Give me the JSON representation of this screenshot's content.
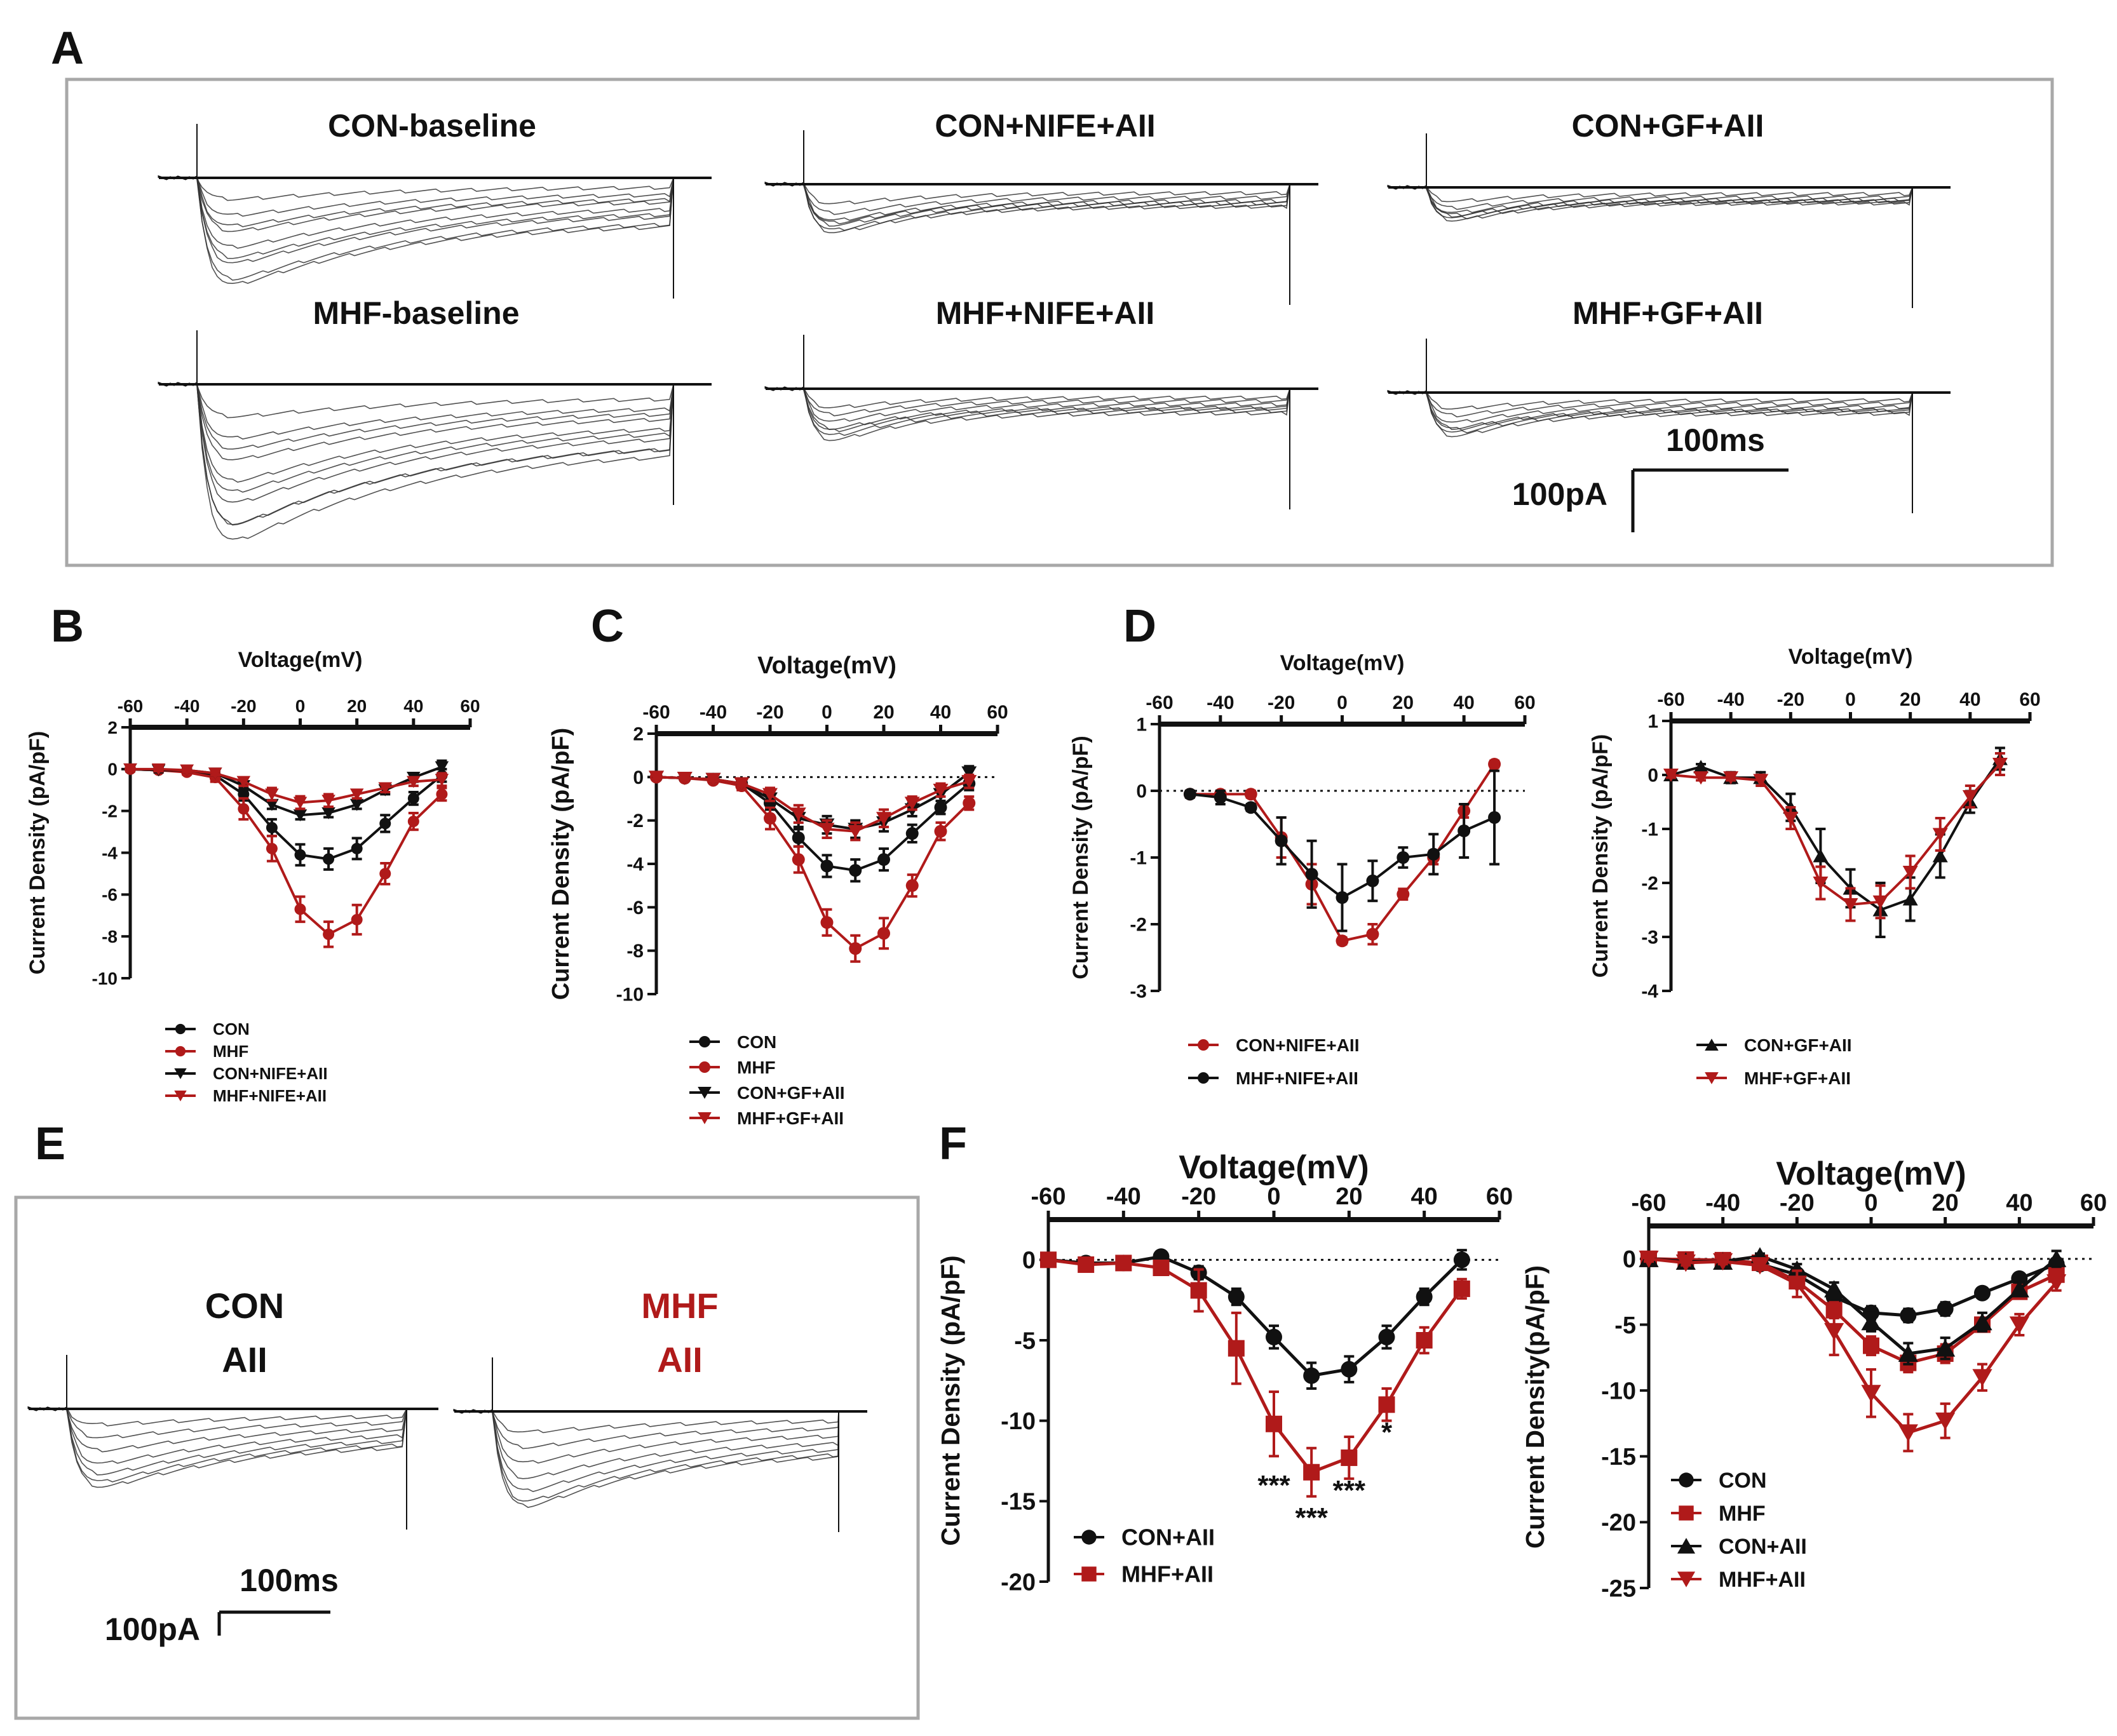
{
  "panel_letters": {
    "a": "A",
    "b": "B",
    "c": "C",
    "d": "D",
    "e": "E",
    "f": "F"
  },
  "colors": {
    "black": "#111111",
    "red": "#b01a1a",
    "frame": "#a8a8a8"
  },
  "traces": {
    "titles": {
      "con_baseline": "CON-baseline",
      "con_nife": "CON+NIFE+AII",
      "con_gf": "CON+GF+AII",
      "mhf_baseline": "MHF-baseline",
      "mhf_nife": "MHF+NIFE+AII",
      "mhf_gf": "MHF+GF+AII"
    },
    "scale_time": "100ms",
    "scale_current": "100pA"
  },
  "traces_e": {
    "con_line1": "CON",
    "con_line2": "AII",
    "mhf_line1": "MHF",
    "mhf_line2": "AII",
    "scale_time": "100ms",
    "scale_current": "100pA"
  },
  "chart_data": [
    {
      "id": "B",
      "type": "line",
      "title": "",
      "xlabel": "Voltage(mV)",
      "ylabel": "Current Density (pA/pF)",
      "xlim": [
        -60,
        60
      ],
      "ylim": [
        -10,
        2
      ],
      "xticks": [
        -60,
        -40,
        -20,
        0,
        20,
        40,
        60
      ],
      "yticks": [
        2,
        0,
        -2,
        -4,
        -6,
        -8,
        -10
      ],
      "zero_line": false,
      "legend": "bottom-left",
      "x": [
        -60,
        -50,
        -40,
        -30,
        -20,
        -10,
        0,
        10,
        20,
        30,
        40,
        50
      ],
      "series": [
        {
          "name": "CON",
          "color": "black",
          "marker": "circle",
          "values": [
            0,
            -0.05,
            -0.1,
            -0.3,
            -1.2,
            -2.8,
            -4.1,
            -4.3,
            -3.8,
            -2.6,
            -1.4,
            -0.3
          ],
          "errors": [
            0.1,
            0.1,
            0.1,
            0.15,
            0.3,
            0.4,
            0.5,
            0.5,
            0.5,
            0.4,
            0.3,
            0.3
          ]
        },
        {
          "name": "MHF",
          "color": "red",
          "marker": "circle",
          "values": [
            0,
            -0.05,
            -0.15,
            -0.4,
            -1.9,
            -3.8,
            -6.7,
            -7.9,
            -7.2,
            -5.0,
            -2.5,
            -1.2
          ],
          "errors": [
            0.1,
            0.1,
            0.1,
            0.2,
            0.5,
            0.6,
            0.6,
            0.6,
            0.7,
            0.5,
            0.4,
            0.3
          ]
        },
        {
          "name": "CON+NIFE+AII",
          "color": "black",
          "marker": "triangle-down",
          "values": [
            0,
            -0.05,
            -0.05,
            -0.2,
            -0.8,
            -1.7,
            -2.2,
            -2.1,
            -1.7,
            -1.0,
            -0.4,
            0.1
          ],
          "errors": [
            0.1,
            0.1,
            0.1,
            0.1,
            0.2,
            0.2,
            0.2,
            0.2,
            0.2,
            0.2,
            0.2,
            0.3
          ]
        },
        {
          "name": "MHF+NIFE+AII",
          "color": "red",
          "marker": "triangle-down",
          "values": [
            0,
            0,
            -0.05,
            -0.2,
            -0.6,
            -1.2,
            -1.6,
            -1.5,
            -1.2,
            -0.9,
            -0.6,
            -0.5
          ],
          "errors": [
            0.1,
            0.1,
            0.1,
            0.1,
            0.2,
            0.3,
            0.3,
            0.3,
            0.2,
            0.2,
            0.2,
            0.3
          ]
        }
      ]
    },
    {
      "id": "C",
      "type": "line",
      "title": "",
      "xlabel": "Voltage(mV)",
      "ylabel": "Current Density (pA/pF)",
      "xlim": [
        -60,
        60
      ],
      "ylim": [
        -10,
        2
      ],
      "xticks": [
        -60,
        -40,
        -20,
        0,
        20,
        40,
        60
      ],
      "yticks": [
        2,
        0,
        -2,
        -4,
        -6,
        -8,
        -10
      ],
      "zero_line": true,
      "legend": "bottom-left",
      "x": [
        -60,
        -50,
        -40,
        -30,
        -20,
        -10,
        0,
        10,
        20,
        30,
        40,
        50
      ],
      "series": [
        {
          "name": "CON",
          "color": "black",
          "marker": "circle",
          "values": [
            0,
            -0.05,
            -0.1,
            -0.3,
            -1.2,
            -2.8,
            -4.1,
            -4.3,
            -3.8,
            -2.6,
            -1.4,
            -0.3
          ],
          "errors": [
            0.1,
            0.1,
            0.1,
            0.15,
            0.3,
            0.4,
            0.5,
            0.5,
            0.5,
            0.4,
            0.3,
            0.3
          ]
        },
        {
          "name": "MHF",
          "color": "red",
          "marker": "circle",
          "values": [
            0,
            -0.05,
            -0.15,
            -0.4,
            -1.9,
            -3.8,
            -6.7,
            -7.9,
            -7.2,
            -5.0,
            -2.5,
            -1.2
          ],
          "errors": [
            0.1,
            0.1,
            0.1,
            0.2,
            0.5,
            0.6,
            0.6,
            0.6,
            0.7,
            0.5,
            0.4,
            0.3
          ]
        },
        {
          "name": "CON+GF+AII",
          "color": "black",
          "marker": "triangle-down",
          "values": [
            0,
            -0.05,
            -0.1,
            -0.3,
            -1.0,
            -1.9,
            -2.2,
            -2.4,
            -2.1,
            -1.5,
            -0.8,
            0.2
          ],
          "errors": [
            0.1,
            0.1,
            0.1,
            0.1,
            0.3,
            0.4,
            0.4,
            0.4,
            0.4,
            0.3,
            0.3,
            0.3
          ]
        },
        {
          "name": "MHF+GF+AII",
          "color": "red",
          "marker": "triangle-down",
          "values": [
            0,
            -0.05,
            -0.1,
            -0.3,
            -0.8,
            -1.7,
            -2.4,
            -2.5,
            -1.9,
            -1.2,
            -0.6,
            -0.2
          ],
          "errors": [
            0.1,
            0.1,
            0.1,
            0.1,
            0.3,
            0.4,
            0.4,
            0.4,
            0.4,
            0.3,
            0.3,
            0.3
          ]
        }
      ]
    },
    {
      "id": "D-left",
      "type": "line",
      "title": "",
      "xlabel": "Voltage(mV)",
      "ylabel": "Current Density (pA/pF)",
      "xlim": [
        -60,
        60
      ],
      "ylim": [
        -3,
        1
      ],
      "xticks": [
        -60,
        -40,
        -20,
        0,
        20,
        40,
        60
      ],
      "yticks": [
        1,
        0,
        -1,
        -2,
        -3
      ],
      "zero_line": true,
      "legend": "bottom-left",
      "x": [
        -50,
        -40,
        -30,
        -20,
        -10,
        0,
        10,
        20,
        30,
        40,
        50
      ],
      "series": [
        {
          "name": "CON+NIFE+AII",
          "color": "red",
          "marker": "circle",
          "values": [
            -0.05,
            -0.05,
            -0.05,
            -0.7,
            -1.4,
            -2.25,
            -2.15,
            -1.55,
            -1.0,
            -0.3,
            0.4
          ],
          "errors": [
            0.05,
            0.05,
            0.05,
            0.3,
            0.3,
            0.05,
            0.15,
            0.08,
            0.1,
            0.1,
            0.05
          ]
        },
        {
          "name": "MHF+NIFE+AII",
          "color": "black",
          "marker": "circle",
          "values": [
            -0.05,
            -0.1,
            -0.25,
            -0.75,
            -1.25,
            -1.6,
            -1.35,
            -1.0,
            -0.95,
            -0.6,
            -0.4
          ],
          "errors": [
            0.05,
            0.1,
            0.05,
            0.35,
            0.5,
            0.5,
            0.3,
            0.15,
            0.3,
            0.4,
            0.7
          ]
        }
      ]
    },
    {
      "id": "D-right",
      "type": "line",
      "title": "",
      "xlabel": "Voltage(mV)",
      "ylabel": "Current Density (pA/pF)",
      "xlim": [
        -60,
        60
      ],
      "ylim": [
        -4,
        1
      ],
      "xticks": [
        -60,
        -40,
        -20,
        0,
        20,
        40,
        60
      ],
      "yticks": [
        1,
        0,
        -1,
        -2,
        -3,
        -4
      ],
      "zero_line": false,
      "legend": "bottom-left",
      "x": [
        -60,
        -50,
        -40,
        -30,
        -20,
        -10,
        0,
        10,
        20,
        30,
        40,
        50
      ],
      "series": [
        {
          "name": "CON+GF+AII",
          "color": "black",
          "marker": "triangle-up",
          "values": [
            0,
            0.15,
            -0.05,
            -0.05,
            -0.6,
            -1.5,
            -2.1,
            -2.5,
            -2.3,
            -1.5,
            -0.5,
            0.3
          ],
          "errors": [
            0.05,
            0.05,
            0.1,
            0.1,
            0.25,
            0.5,
            0.35,
            0.5,
            0.4,
            0.4,
            0.2,
            0.2
          ]
        },
        {
          "name": "MHF+GF+AII",
          "color": "red",
          "marker": "triangle-down",
          "values": [
            0,
            -0.05,
            -0.05,
            -0.1,
            -0.8,
            -2.0,
            -2.4,
            -2.35,
            -1.8,
            -1.1,
            -0.4,
            0.2
          ],
          "errors": [
            0.05,
            0.05,
            0.05,
            0.1,
            0.2,
            0.3,
            0.3,
            0.3,
            0.3,
            0.3,
            0.2,
            0.2
          ]
        }
      ]
    },
    {
      "id": "F-left",
      "type": "line",
      "title": "",
      "xlabel": "Voltage(mV)",
      "ylabel": "Current Density (pA/pF)",
      "xlim": [
        -60,
        60
      ],
      "ylim": [
        -20,
        2.5
      ],
      "xticks": [
        -60,
        -40,
        -20,
        0,
        20,
        40,
        60
      ],
      "yticks": [
        0,
        -5,
        -10,
        -15,
        -20
      ],
      "zero_line": true,
      "legend": "bottom-left",
      "x": [
        -60,
        -50,
        -40,
        -30,
        -20,
        -10,
        0,
        10,
        20,
        30,
        40,
        50
      ],
      "series": [
        {
          "name": "CON+AII",
          "color": "black",
          "marker": "circle",
          "values": [
            0,
            -0.2,
            -0.2,
            0.2,
            -0.8,
            -2.3,
            -4.8,
            -7.2,
            -6.8,
            -4.8,
            -2.3,
            0
          ],
          "errors": [
            0.2,
            0.2,
            0.2,
            0.2,
            0.4,
            0.5,
            0.7,
            0.8,
            0.8,
            0.7,
            0.5,
            0.6
          ]
        },
        {
          "name": "MHF+AII",
          "color": "red",
          "marker": "square",
          "values": [
            0,
            -0.3,
            -0.2,
            -0.5,
            -1.9,
            -5.5,
            -10.2,
            -13.2,
            -12.3,
            -9.0,
            -5.0,
            -1.8
          ],
          "errors": [
            0.2,
            0.2,
            0.2,
            0.2,
            1.3,
            2.2,
            2.0,
            1.5,
            1.3,
            1.0,
            0.8,
            0.6
          ]
        }
      ],
      "annotations": [
        {
          "text": "***",
          "x": 0,
          "y": -14.6
        },
        {
          "text": "***",
          "x": 10,
          "y": -16.6
        },
        {
          "text": "***",
          "x": 20,
          "y": -14.9
        },
        {
          "text": "*",
          "x": 30,
          "y": -11.3
        }
      ]
    },
    {
      "id": "F-right",
      "type": "line",
      "title": "",
      "xlabel": "Voltage(mV)",
      "ylabel": "Current Density(pA/pF)",
      "xlim": [
        -60,
        60
      ],
      "ylim": [
        -25,
        2.5
      ],
      "xticks": [
        -60,
        -40,
        -20,
        0,
        20,
        40,
        60
      ],
      "yticks": [
        0,
        -5,
        -10,
        -15,
        -20,
        -25
      ],
      "zero_line": true,
      "legend": "bottom-left",
      "x": [
        -60,
        -50,
        -40,
        -30,
        -20,
        -10,
        0,
        10,
        20,
        30,
        40,
        50
      ],
      "series": [
        {
          "name": "CON",
          "color": "black",
          "marker": "circle",
          "values": [
            0,
            -0.05,
            -0.1,
            -0.4,
            -1.2,
            -2.9,
            -4.1,
            -4.3,
            -3.8,
            -2.6,
            -1.5,
            -0.4
          ],
          "errors": [
            0.1,
            0.1,
            0.1,
            0.2,
            0.3,
            0.4,
            0.5,
            0.5,
            0.5,
            0.4,
            0.4,
            0.4
          ]
        },
        {
          "name": "MHF",
          "color": "red",
          "marker": "square",
          "values": [
            0,
            -0.05,
            -0.1,
            -0.3,
            -1.7,
            -3.9,
            -6.6,
            -7.9,
            -7.2,
            -5.0,
            -2.5,
            -1.2
          ],
          "errors": [
            0.1,
            0.1,
            0.1,
            0.2,
            0.5,
            0.6,
            0.7,
            0.7,
            0.7,
            0.5,
            0.4,
            0.3
          ]
        },
        {
          "name": "CON+AII",
          "color": "black",
          "marker": "triangle-up",
          "values": [
            0,
            -0.2,
            -0.2,
            0.2,
            -0.8,
            -2.3,
            -4.8,
            -7.2,
            -6.8,
            -4.8,
            -2.3,
            0
          ],
          "errors": [
            0.2,
            0.2,
            0.2,
            0.2,
            0.4,
            0.5,
            0.7,
            0.8,
            0.8,
            0.7,
            0.5,
            0.6
          ]
        },
        {
          "name": "MHF+AII",
          "color": "red",
          "marker": "triangle-down",
          "values": [
            0,
            -0.3,
            -0.2,
            -0.5,
            -1.9,
            -5.5,
            -10.2,
            -13.2,
            -12.3,
            -9.0,
            -5.0,
            -1.8
          ],
          "errors": [
            0.2,
            0.2,
            0.2,
            0.2,
            1.0,
            1.8,
            1.8,
            1.4,
            1.3,
            1.0,
            0.8,
            0.6
          ]
        }
      ]
    }
  ]
}
